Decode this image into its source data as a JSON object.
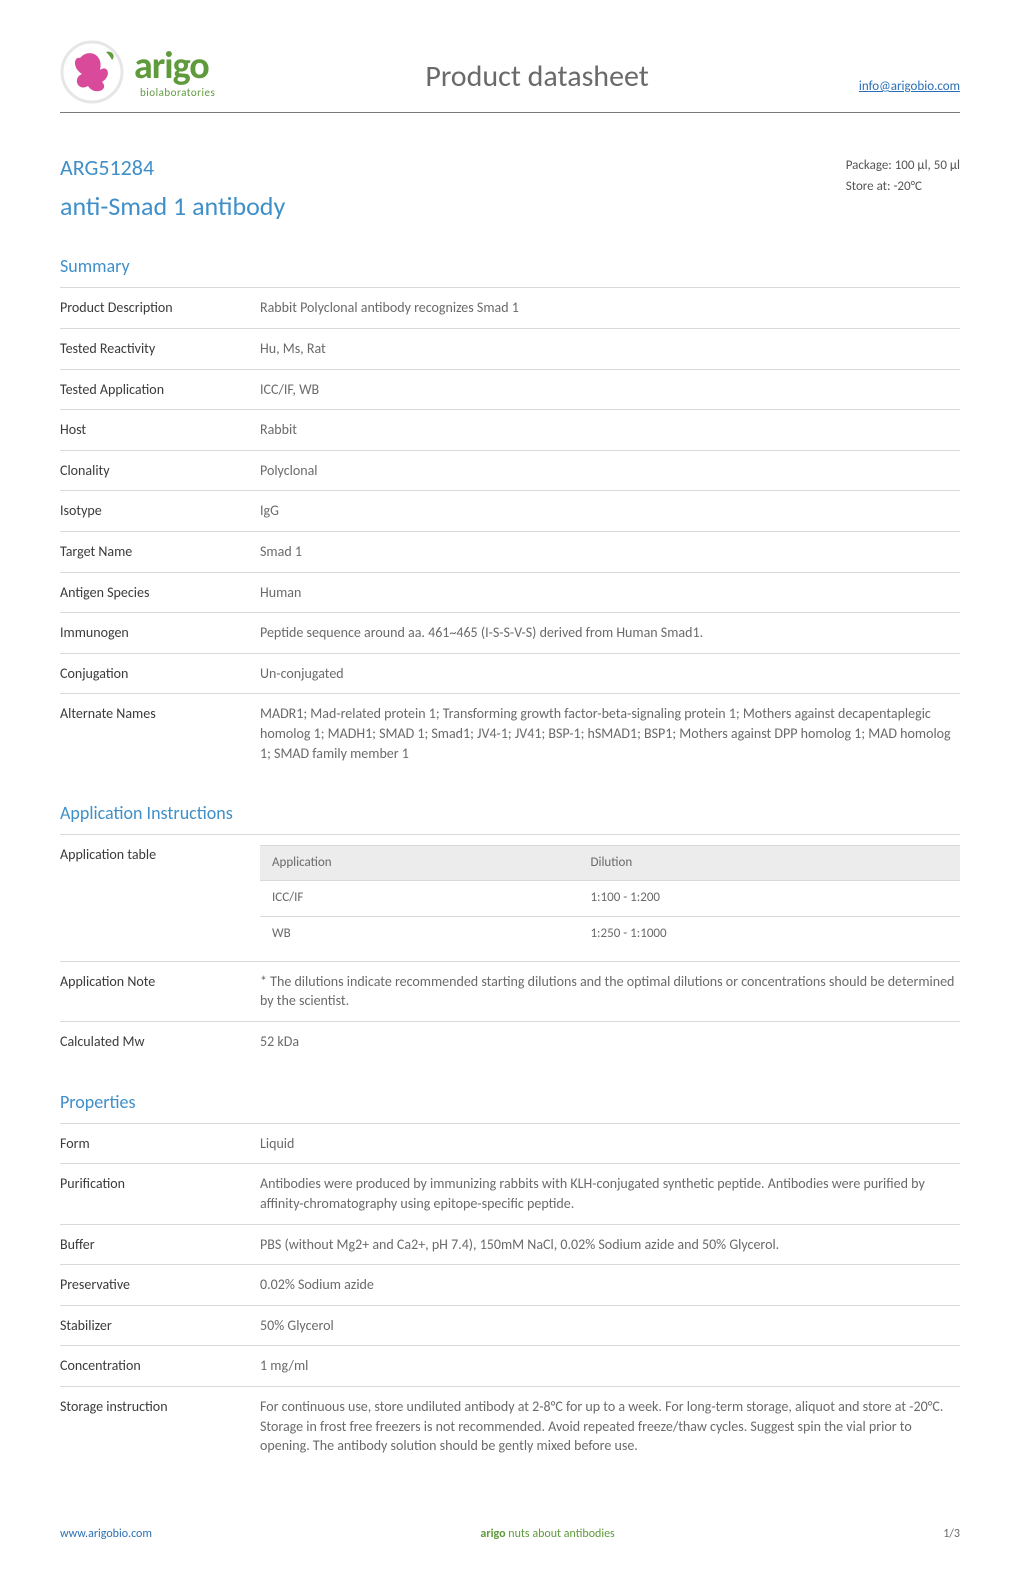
{
  "header": {
    "brand_word": "arigo",
    "brand_sub": "biolaboratories",
    "page_title": "Product datasheet",
    "contact_link": "info@arigobio.com",
    "logo_colors": {
      "leaf": "#5f9b3c",
      "swirl": "#d94b9a",
      "ring": "#e6e6e6"
    }
  },
  "product": {
    "code": "ARG51284",
    "name": "anti-Smad 1 antibody",
    "package": "Package: 100 μl, 50 μl",
    "store": "Store at: -20°C"
  },
  "sections": {
    "summary": "Summary",
    "app_instructions": "Application Instructions",
    "properties": "Properties"
  },
  "summary": [
    {
      "k": "Product Description",
      "v": "Rabbit Polyclonal antibody recognizes Smad 1"
    },
    {
      "k": "Tested Reactivity",
      "v": "Hu, Ms, Rat"
    },
    {
      "k": "Tested Application",
      "v": "ICC/IF, WB"
    },
    {
      "k": "Host",
      "v": "Rabbit"
    },
    {
      "k": "Clonality",
      "v": "Polyclonal"
    },
    {
      "k": "Isotype",
      "v": "IgG"
    },
    {
      "k": "Target Name",
      "v": "Smad 1"
    },
    {
      "k": "Antigen Species",
      "v": "Human"
    },
    {
      "k": "Immunogen",
      "v": "Peptide sequence around aa. 461~465 (I-S-S-V-S) derived from Human Smad1."
    },
    {
      "k": "Conjugation",
      "v": "Un-conjugated"
    },
    {
      "k": "Alternate Names",
      "v": "MADR1; Mad-related protein 1; Transforming growth factor-beta-signaling protein 1; Mothers against decapentaplegic homolog 1; MADH1; SMAD 1; Smad1; JV4-1; JV41; BSP-1; hSMAD1; BSP1; Mothers against DPP homolog 1; MAD homolog 1; SMAD family member 1"
    }
  ],
  "app_table": {
    "headers": [
      "Application",
      "Dilution"
    ],
    "rows": [
      [
        "ICC/IF",
        "1:100 - 1:200"
      ],
      [
        "WB",
        "1:250 - 1:1000"
      ]
    ]
  },
  "app_kv": [
    {
      "k": "Application Note",
      "v": "* The dilutions indicate recommended starting dilutions and the optimal dilutions or concentrations should be determined by the scientist."
    },
    {
      "k": "Calculated Mw",
      "v": "52 kDa"
    }
  ],
  "properties": [
    {
      "k": "Form",
      "v": "Liquid"
    },
    {
      "k": "Purification",
      "v": "Antibodies were produced by immunizing rabbits with KLH-conjugated synthetic peptide. Antibodies were purified by affinity-chromatography using epitope-specific peptide."
    },
    {
      "k": "Buffer",
      "v": "PBS (without Mg2+ and Ca2+, pH 7.4), 150mM NaCl, 0.02% Sodium azide and 50% Glycerol."
    },
    {
      "k": "Preservative",
      "v": "0.02% Sodium azide"
    },
    {
      "k": "Stabilizer",
      "v": "50% Glycerol"
    },
    {
      "k": "Concentration",
      "v": "1 mg/ml"
    },
    {
      "k": "Storage instruction",
      "v": "For continuous use, store undiluted antibody at 2-8°C for up to a week. For long-term storage, aliquot and store at -20°C. Storage in frost free freezers is not recommended. Avoid repeated freeze/thaw cycles. Suggest spin the vial prior to opening. The antibody solution should be gently mixed before use."
    }
  ],
  "footer": {
    "left": "www.arigobio.com",
    "center_brand": "arigo",
    "center_tag": " nuts about antibodies",
    "right": "1/3"
  },
  "style": {
    "accent_blue": "#3f8fc9",
    "text_gray": "#6a6a6a",
    "rule_gray": "#d9d9d9",
    "brand_green": "#5f9b3c",
    "link_blue": "#2a6fb5"
  }
}
